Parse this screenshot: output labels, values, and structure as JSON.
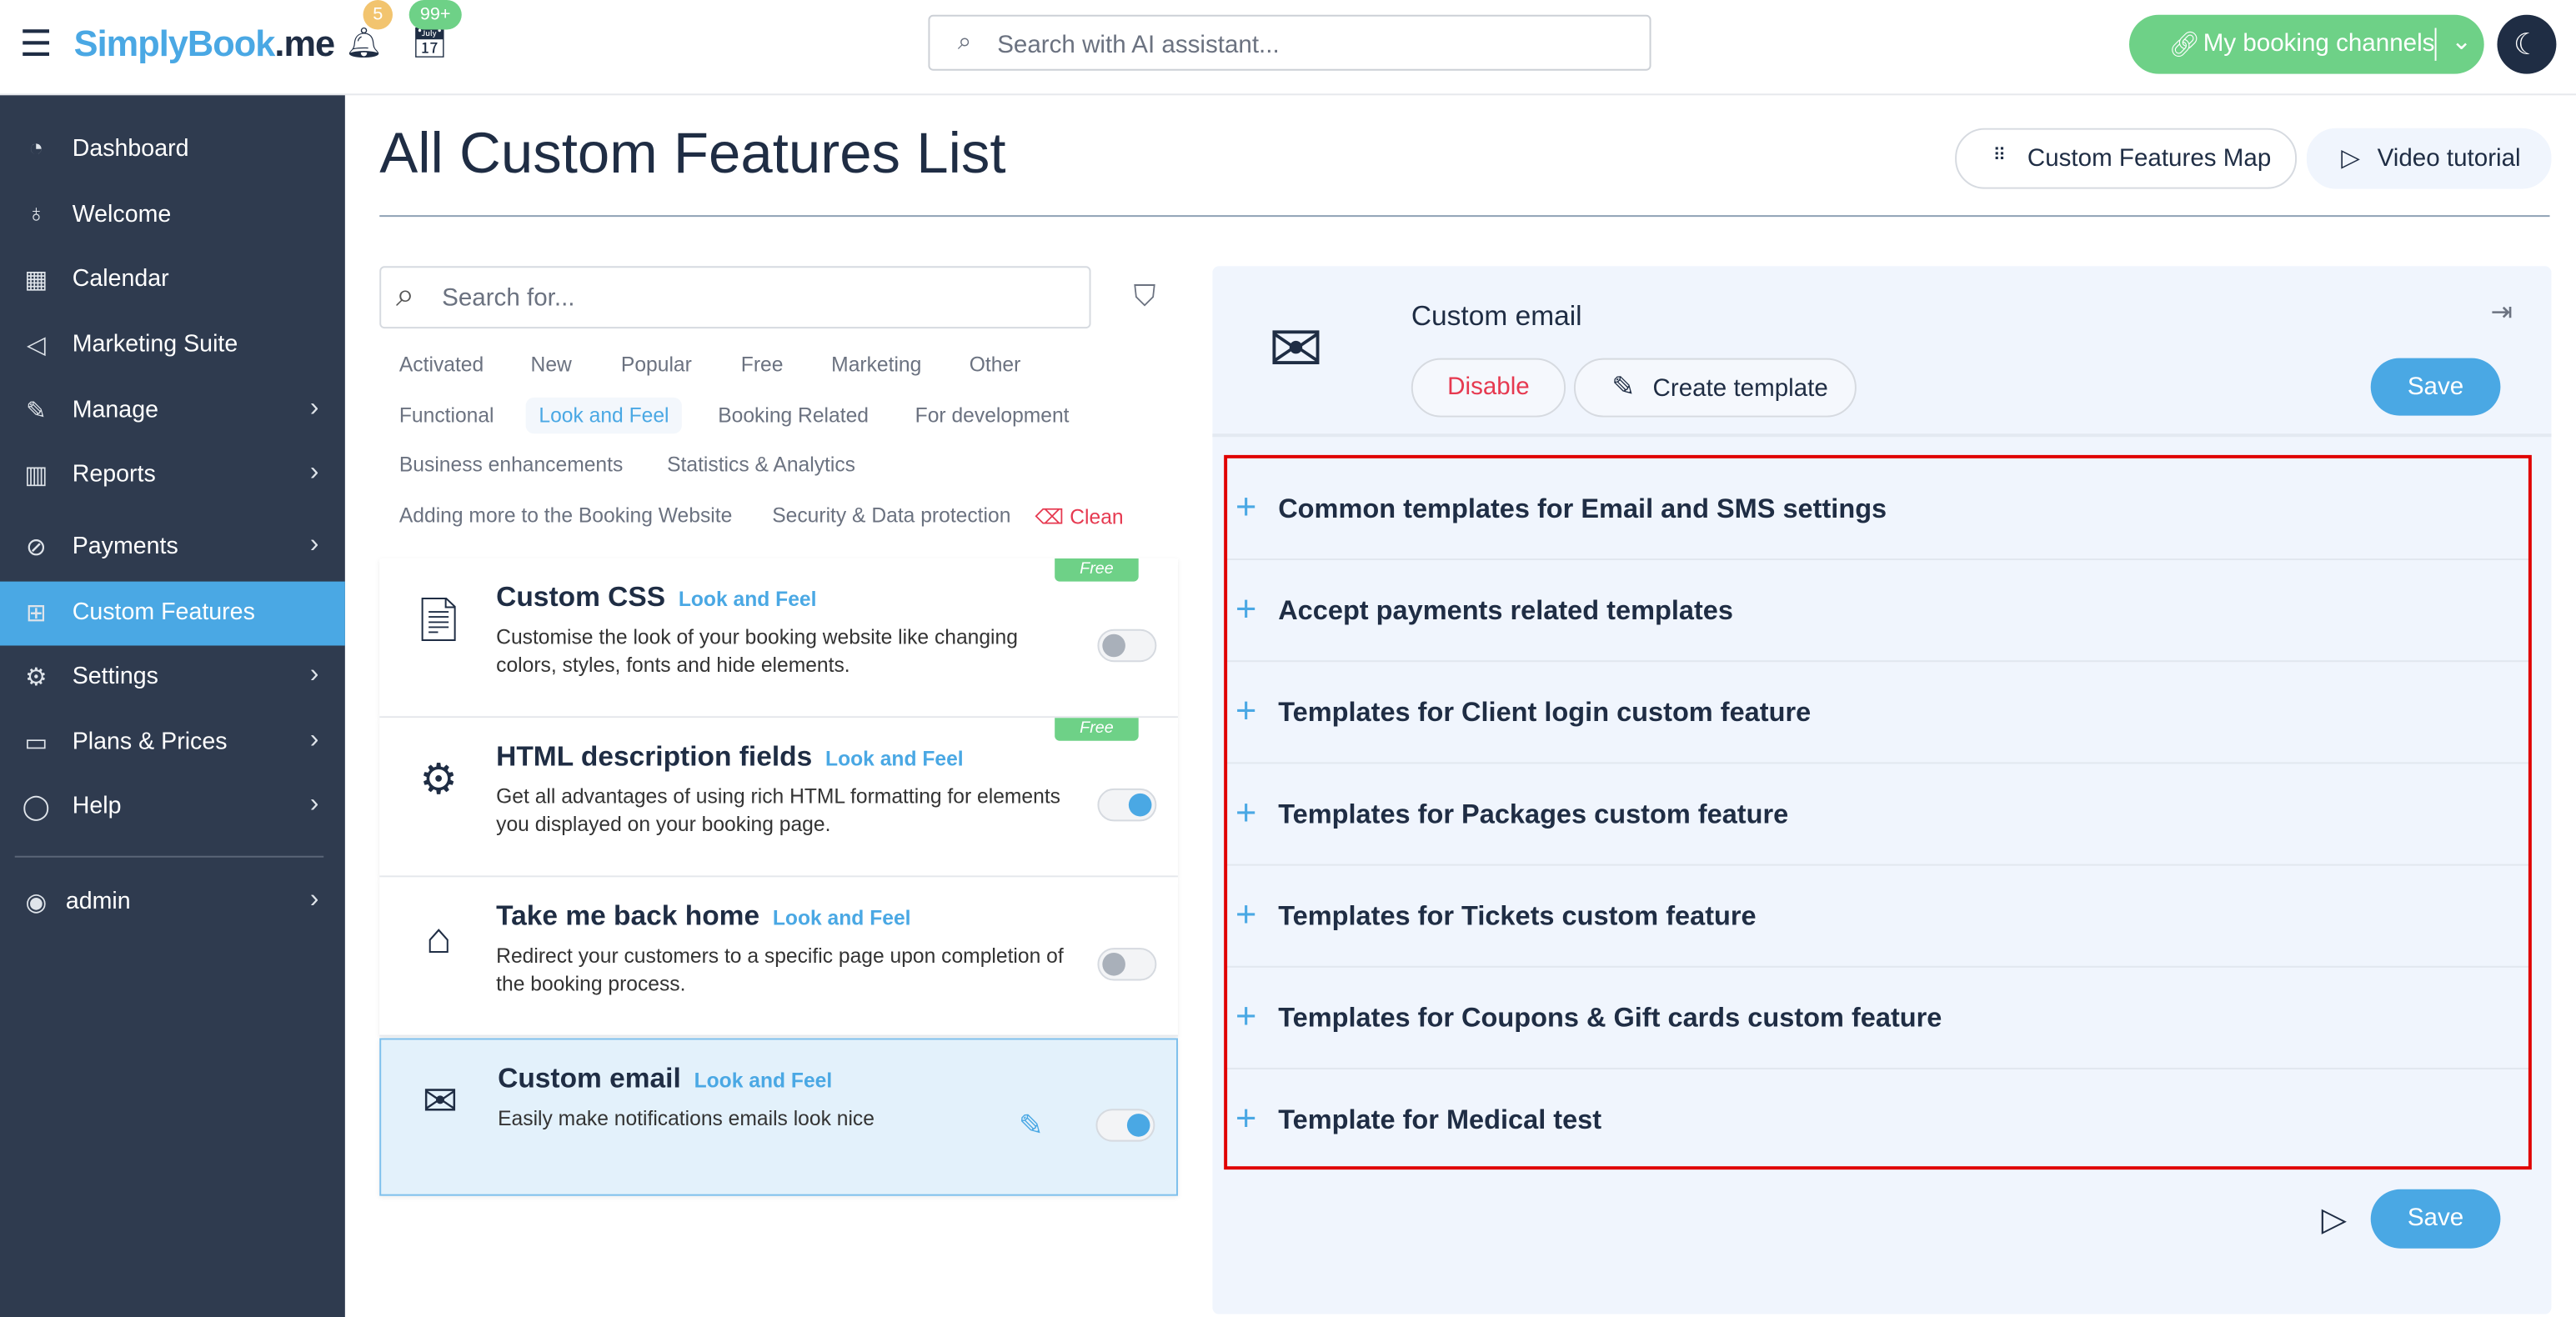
{
  "header": {
    "logo_text": "SimplyBook.me",
    "logo_blue": "SimplyBook",
    "logo_dark": ".me",
    "notifications_count": "5",
    "bookings_count": "99+",
    "search_placeholder": "Search with AI assistant...",
    "channels_label": "My booking channels"
  },
  "sidebar": {
    "items": [
      {
        "label": "Dashboard",
        "icon": "gauge-icon"
      },
      {
        "label": "Welcome",
        "icon": "lightbulb-icon"
      },
      {
        "label": "Calendar",
        "icon": "calendar-icon"
      },
      {
        "label": "Marketing Suite",
        "icon": "megaphone-icon"
      },
      {
        "label": "Manage",
        "icon": "pencil-icon",
        "has_children": true
      },
      {
        "label": "Reports",
        "icon": "chart-icon",
        "has_children": true
      },
      {
        "label": "Payments",
        "icon": "payment-icon",
        "has_children": true
      },
      {
        "label": "Custom Features",
        "icon": "gift-icon",
        "active": true
      },
      {
        "label": "Settings",
        "icon": "gear-icon",
        "has_children": true
      },
      {
        "label": "Plans & Prices",
        "icon": "money-icon",
        "has_children": true
      },
      {
        "label": "Help",
        "icon": "chat-icon",
        "has_children": true
      }
    ],
    "user": "admin"
  },
  "page": {
    "title": "All Custom Features List",
    "map_button": "Custom Features Map",
    "video_button": "Video tutorial"
  },
  "filters": {
    "search_placeholder": "Search for...",
    "tags": [
      "Activated",
      "New",
      "Popular",
      "Free",
      "Marketing",
      "Other",
      "Functional",
      "Look and Feel",
      "Booking Related",
      "For development",
      "Business enhancements",
      "Statistics & Analytics",
      "Adding more to the Booking Website",
      "Security & Data protection"
    ],
    "selected": "Look and Feel",
    "clean_label": "Clean"
  },
  "features": [
    {
      "name": "Custom CSS",
      "category": "Look and Feel",
      "description": "Customise the look of your booking website like changing colors, styles, fonts and hide elements.",
      "badge": "Free",
      "enabled": false
    },
    {
      "name": "HTML description fields",
      "category": "Look and Feel",
      "description": "Get all advantages of using rich HTML formatting for elements you displayed on your booking page.",
      "badge": "Free",
      "enabled": true
    },
    {
      "name": "Take me back home",
      "category": "Look and Feel",
      "description": "Redirect your customers to a specific page upon completion of the booking process.",
      "enabled": false
    },
    {
      "name": "Custom email",
      "category": "Look and Feel",
      "description": "Easily make notifications emails look nice",
      "enabled": true,
      "selected": true
    }
  ],
  "detail": {
    "title": "Custom email",
    "disable_label": "Disable",
    "create_template_label": "Create template",
    "save_label": "Save",
    "sections": [
      "Common templates for Email and SMS settings",
      "Accept payments related templates",
      "Templates for Client login custom feature",
      "Templates for Packages custom feature",
      "Templates for Tickets custom feature",
      "Templates for Coupons & Gift cards custom feature",
      "Template for Medical test"
    ]
  },
  "colors": {
    "accent": "#4aa8e4",
    "sidebar": "#2f3b4f",
    "green": "#6ed187",
    "danger": "#e63950",
    "highlight_box": "#e00000"
  }
}
